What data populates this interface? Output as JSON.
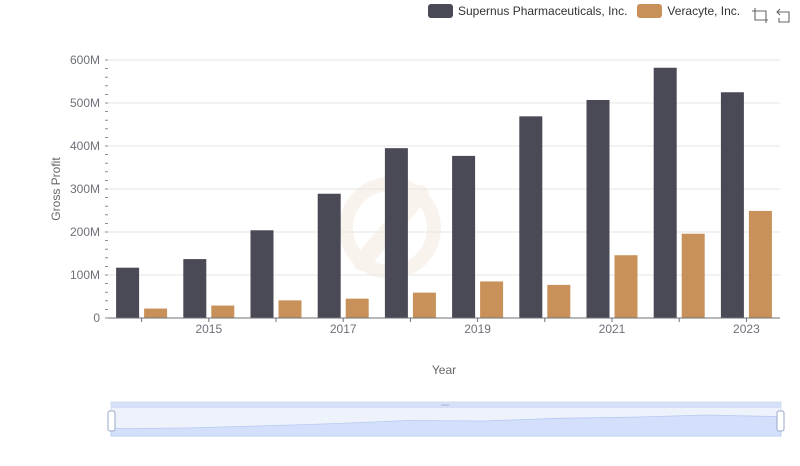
{
  "chart_data": {
    "type": "bar",
    "categories": [
      "2014",
      "2015",
      "2016",
      "2017",
      "2018",
      "2019",
      "2020",
      "2021",
      "2022",
      "2023"
    ],
    "x_tick_labels": [
      "2015",
      "2017",
      "2019",
      "2021",
      "2023"
    ],
    "series": [
      {
        "name": "Supernus Pharmaceuticals, Inc.",
        "color": "#4a4a56",
        "values": [
          117,
          137,
          204,
          289,
          395,
          377,
          469,
          507,
          582,
          525
        ]
      },
      {
        "name": "Veracyte, Inc.",
        "color": "#c9915a",
        "values": [
          22,
          29,
          41,
          45,
          59,
          85,
          77,
          146,
          196,
          249
        ]
      }
    ],
    "unit": "M",
    "ylim": [
      0,
      600
    ],
    "y_ticks": [
      0,
      100,
      200,
      300,
      400,
      500,
      600
    ],
    "y_tick_labels": [
      "0",
      "100M",
      "200M",
      "300M",
      "400M",
      "500M",
      "600M"
    ],
    "xlabel": "Year",
    "ylabel": "Gross Profit",
    "grid": true,
    "legend_position": "top-right"
  },
  "toolbox": {
    "zoom_icon": "zoom-icon",
    "restore_icon": "restore-icon"
  },
  "slider": {
    "handle_icon": "drag-handle-icon"
  }
}
